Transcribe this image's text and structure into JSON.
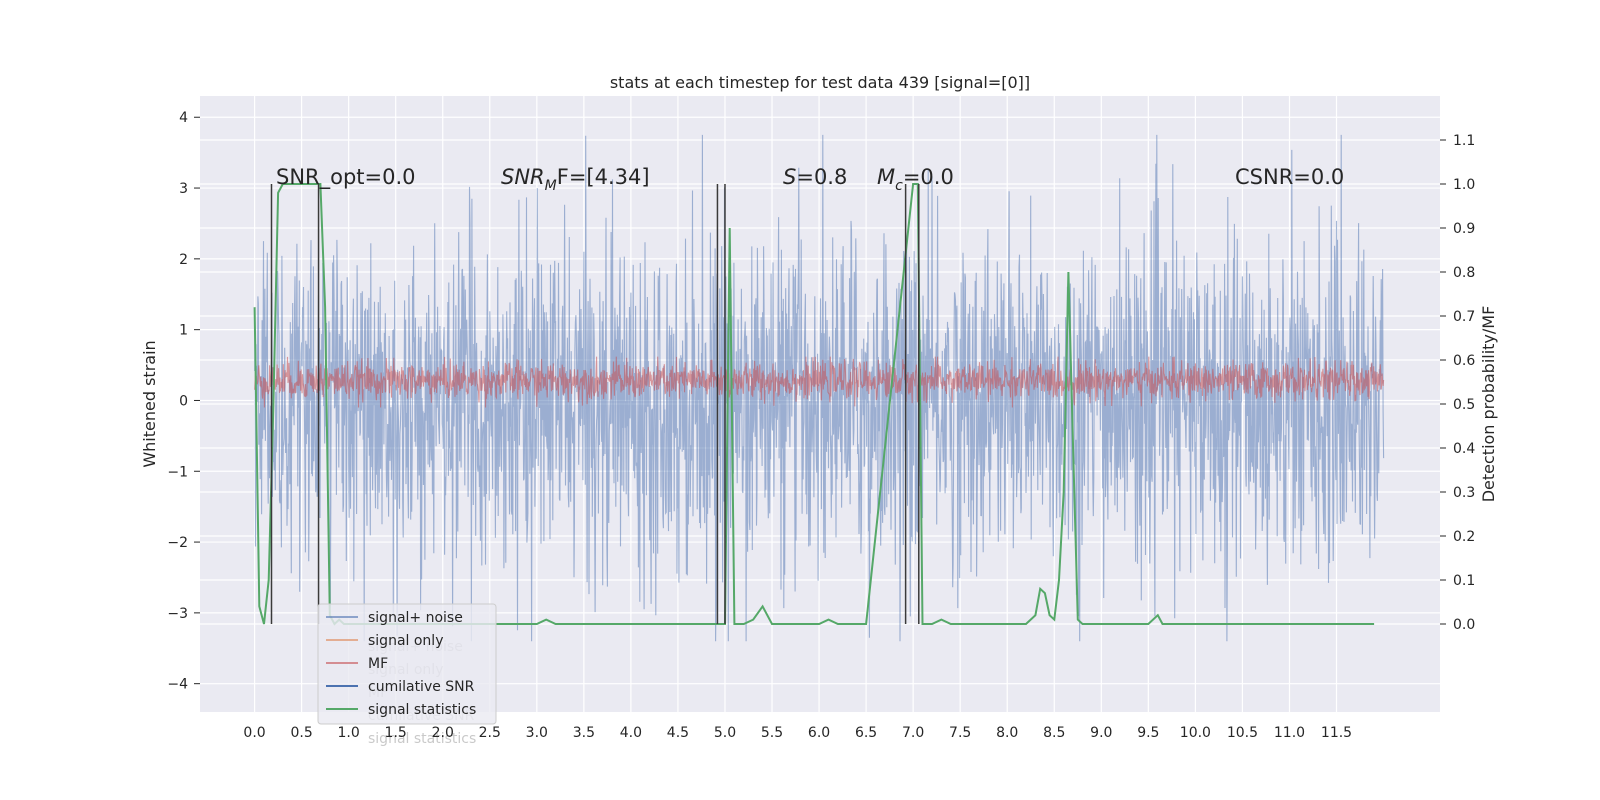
{
  "chart_data": {
    "type": "line",
    "title": "stats at each timestep for test data 439 [signal=[0]]",
    "ylabel": "Whitened strain",
    "ylabel_right": "Detection probability/MF",
    "xlim": [
      -0.58,
      12.6
    ],
    "ylim": [
      -4.4,
      4.3
    ],
    "ylim_right": [
      -0.2,
      1.2
    ],
    "x_ticks": [
      "0.0",
      "0.5",
      "1.0",
      "1.5",
      "2.0",
      "2.5",
      "3.0",
      "3.5",
      "4.0",
      "4.5",
      "5.0",
      "5.5",
      "6.0",
      "6.5",
      "7.0",
      "7.5",
      "8.0",
      "8.5",
      "9.0",
      "9.5",
      "10.0",
      "10.5",
      "11.0",
      "11.5"
    ],
    "y_ticks_left": [
      "4",
      "3",
      "2",
      "1",
      "0",
      "−1",
      "−2",
      "−3",
      "−4"
    ],
    "y_ticks_right": [
      "1.1",
      "1.0",
      "0.9",
      "0.8",
      "0.7",
      "0.6",
      "0.5",
      "0.4",
      "0.3",
      "0.2",
      "0.1",
      "0.0"
    ],
    "grid": true,
    "legend_position": "lower-left",
    "colors": {
      "signal_noise": "#4c72b0",
      "signal_only": "#dd8452",
      "mf": "#c44e52",
      "cumulative_snr": "#4c72b0",
      "signal_statistics": "#55a868",
      "markers": "#3a3a3a",
      "axes_bg": "#eaeaf2",
      "grid": "#ffffff"
    },
    "legend": [
      {
        "label": "signal+ noise",
        "color": "#4c72b0"
      },
      {
        "label": "signal only",
        "color": "#dd8452"
      },
      {
        "label": "MF",
        "color": "#c44e52"
      },
      {
        "label": "cumilative SNR",
        "color": "#4c72b0"
      },
      {
        "label": "signal statistics",
        "color": "#55a868"
      }
    ],
    "ghost_legend": [
      "signal+ noise",
      "signal only",
      "MF",
      "cumilative SNR",
      "signal statistics"
    ],
    "annotations": {
      "snr_opt": "SNR_opt=0.0",
      "snr_mf_sym": "SNR",
      "snr_mf_sub": "M",
      "snr_mf_rest": "F=[4.34]",
      "s_sym": "S",
      "s_rest": "=0.8",
      "mc_sym": "M",
      "mc_sub": "c",
      "mc_rest": "=0.0",
      "csnr": "CSNR=0.0"
    },
    "series": [
      {
        "name": "signal+ noise",
        "description_range": [
          -3.4,
          3.9
        ],
        "x_range": [
          0.0,
          12.0
        ]
      },
      {
        "name": "MF",
        "x_range": [
          0.0,
          12.0
        ]
      },
      {
        "name": "signal statistics",
        "x": [
          0.0,
          0.05,
          0.1,
          0.15,
          0.2,
          0.25,
          0.3,
          0.35,
          0.4,
          0.45,
          0.5,
          0.55,
          0.6,
          0.65,
          0.7,
          0.75,
          0.8,
          0.85,
          0.9,
          0.95,
          1.0,
          1.5,
          2.0,
          2.5,
          3.0,
          3.1,
          3.2,
          3.3,
          3.5,
          4.0,
          4.5,
          4.9,
          4.95,
          5.0,
          5.05,
          5.1,
          5.2,
          5.3,
          5.4,
          5.5,
          5.6,
          6.0,
          6.1,
          6.2,
          6.5,
          7.0,
          7.05,
          7.1,
          7.15,
          7.2,
          7.3,
          7.4,
          7.5,
          8.0,
          8.2,
          8.3,
          8.35,
          8.4,
          8.45,
          8.5,
          8.55,
          8.6,
          8.65,
          8.7,
          8.75,
          8.8,
          8.85,
          8.9,
          9.0,
          9.5,
          9.6,
          9.65,
          9.7,
          9.8,
          10.0,
          11.0,
          11.3,
          11.5,
          11.9
        ],
        "values": [
          0.72,
          0.04,
          0.0,
          0.1,
          0.5,
          0.98,
          1.0,
          1.0,
          1.0,
          1.0,
          1.0,
          1.0,
          1.0,
          1.0,
          1.0,
          0.72,
          0.02,
          0.0,
          0.01,
          0.0,
          0.0,
          0.0,
          0.0,
          0.0,
          0.0,
          0.01,
          0.0,
          0.0,
          0.0,
          0.0,
          0.0,
          0.0,
          0.0,
          0.0,
          0.9,
          0.0,
          0.0,
          0.01,
          0.04,
          0.0,
          0.0,
          0.0,
          0.01,
          0.0,
          0.0,
          1.0,
          1.0,
          0.0,
          0.0,
          0.0,
          0.01,
          0.0,
          0.0,
          0.0,
          0.0,
          0.02,
          0.08,
          0.07,
          0.02,
          0.01,
          0.1,
          0.3,
          0.8,
          0.4,
          0.01,
          0.0,
          0.0,
          0.0,
          0.0,
          0.0,
          0.02,
          0.0,
          0.0,
          0.0,
          0.0,
          0.0,
          0.0,
          0.0,
          0.0
        ]
      },
      {
        "name": "markers",
        "x": [
          0.18,
          0.68,
          4.92,
          5.0,
          6.92,
          7.06
        ]
      }
    ]
  }
}
